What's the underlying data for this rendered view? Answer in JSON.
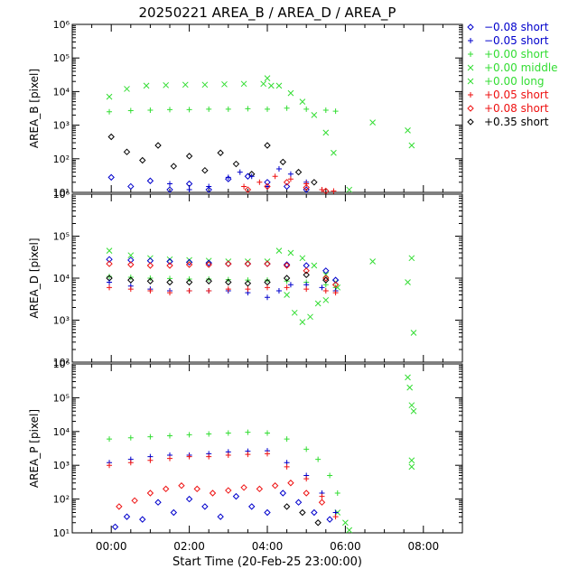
{
  "chart_data": {
    "type": "scatter",
    "title": "20250221 AREA_B / AREA_D / AREA_P",
    "xlabel": "Start Time (20-Feb-25 23:00:00)",
    "x_unit": "hours after 00:00",
    "xlim": [
      -1.0,
      9.0
    ],
    "x_ticks": [
      0,
      2,
      4,
      6,
      8
    ],
    "x_tick_labels": [
      "00:00",
      "02:00",
      "04:00",
      "06:00",
      "08:00"
    ],
    "legend_position": "right",
    "legend": [
      {
        "label": "−0.08 short",
        "symbol": "diamond",
        "color": "#0000cc"
      },
      {
        "label": "−0.05 short",
        "symbol": "plus",
        "color": "#0000cc"
      },
      {
        "label": "+0.00 short",
        "symbol": "plus",
        "color": "#33dd33"
      },
      {
        "label": "+0.00 middle",
        "symbol": "cross",
        "color": "#33dd33"
      },
      {
        "label": "+0.00 long",
        "symbol": "cross",
        "color": "#33dd33"
      },
      {
        "label": "+0.05 short",
        "symbol": "plus",
        "color": "#ee1111"
      },
      {
        "label": "+0.08 short",
        "symbol": "diamond",
        "color": "#ee1111"
      },
      {
        "label": "+0.35 short",
        "symbol": "diamond",
        "color": "#000000"
      }
    ],
    "panels": [
      {
        "ylabel": "AREA_B [pixel]",
        "ylim_log10": [
          1,
          6
        ],
        "y_tick_labels": [
          "10¹",
          "10²",
          "10³",
          "10⁴",
          "10⁵",
          "10⁶"
        ],
        "series": [
          {
            "name": "+0.00 long",
            "x": [
              -0.05,
              0.4,
              0.9,
              1.4,
              1.9,
              2.4,
              2.9,
              3.4,
              3.9,
              4.1
            ],
            "y": [
              7000,
              12000,
              15000,
              15500,
              16000,
              16000,
              16500,
              17000,
              17000,
              15000
            ]
          },
          {
            "name": "+0.00 short",
            "x": [
              -0.05,
              0.5,
              1.0,
              1.5,
              2.0,
              2.5,
              3.0,
              3.5,
              4.0,
              4.5,
              5.0,
              5.5,
              5.75
            ],
            "y": [
              2500,
              2700,
              2800,
              2900,
              2900,
              3000,
              3000,
              3100,
              3000,
              3200,
              3000,
              2800,
              2600
            ]
          },
          {
            "name": "+0.00 middle",
            "x": [
              4.0,
              4.3,
              4.6,
              4.9,
              5.2,
              5.5,
              5.7,
              6.1,
              6.7,
              7.6,
              7.7
            ],
            "y": [
              25000,
              15000,
              9000,
              5000,
              2000,
              600,
              150,
              12,
              1200,
              700,
              250
            ]
          },
          {
            "name": "+0.35 short",
            "x": [
              0.0,
              0.4,
              0.8,
              1.2,
              1.6,
              2.0,
              2.4,
              2.8,
              3.2,
              3.6,
              4.0,
              4.4,
              4.8,
              5.2
            ],
            "y": [
              450,
              160,
              90,
              250,
              60,
              120,
              45,
              150,
              70,
              35,
              250,
              80,
              40,
              20
            ]
          },
          {
            "name": "−0.08 short",
            "x": [
              0.0,
              0.5,
              1.0,
              1.5,
              2.0,
              2.5,
              3.0,
              3.5,
              4.0,
              4.5,
              5.0
            ],
            "y": [
              28,
              15,
              22,
              12,
              18,
              12,
              25,
              30,
              20,
              15,
              12
            ]
          },
          {
            "name": "−0.05 short",
            "x": [
              1.5,
              2.0,
              2.5,
              3.0,
              3.3,
              3.6,
              4.0,
              4.3,
              4.6,
              5.0,
              5.4
            ],
            "y": [
              18,
              12,
              15,
              28,
              40,
              30,
              15,
              50,
              35,
              20,
              12
            ]
          },
          {
            "name": "+0.05 short",
            "x": [
              3.4,
              3.8,
              4.2,
              4.6,
              5.0,
              5.4,
              5.7
            ],
            "y": [
              15,
              20,
              30,
              25,
              18,
              12,
              11
            ]
          },
          {
            "name": "+0.08 short",
            "x": [
              3.5,
              4.0,
              4.5,
              5.0,
              5.5
            ],
            "y": [
              12,
              15,
              20,
              14,
              11
            ]
          }
        ]
      },
      {
        "ylabel": "AREA_D [pixel]",
        "ylim_log10": [
          2,
          6
        ],
        "y_tick_labels": [
          "10²",
          "10³",
          "10⁴",
          "10⁵",
          "10⁶"
        ],
        "series": [
          {
            "name": "+0.00 long",
            "x": [
              -0.05,
              0.5,
              1.0,
              1.5,
              2.0,
              2.5,
              3.0,
              3.5,
              4.0,
              4.3,
              4.6,
              4.9,
              5.2,
              5.5,
              5.75
            ],
            "y": [
              45000,
              35000,
              30000,
              28000,
              27000,
              26000,
              25000,
              25000,
              25000,
              45000,
              40000,
              30000,
              20000,
              12000,
              8000
            ]
          },
          {
            "name": "+0.00 short",
            "x": [
              -0.05,
              0.5,
              1.0,
              1.5,
              2.0,
              2.5,
              3.0,
              3.5,
              4.0,
              4.5,
              5.0,
              5.5,
              5.75
            ],
            "y": [
              11000,
              10500,
              10000,
              9800,
              9500,
              9500,
              9200,
              9000,
              9000,
              8500,
              8000,
              7000,
              6000
            ]
          },
          {
            "name": "+0.00 middle",
            "x": [
              4.5,
              4.7,
              4.9,
              5.1,
              5.3,
              5.5,
              5.8,
              6.7,
              7.6,
              7.7,
              7.75
            ],
            "y": [
              4000,
              1500,
              900,
              1200,
              2500,
              3000,
              6000,
              25000,
              8000,
              30000,
              500
            ]
          },
          {
            "name": "−0.08 short",
            "x": [
              -0.05,
              0.5,
              1.0,
              1.5,
              2.0,
              2.5,
              3.0,
              3.5,
              4.0,
              4.5,
              5.0,
              5.5,
              5.75
            ],
            "y": [
              28000,
              27000,
              26000,
              25000,
              24000,
              23000,
              22000,
              22000,
              22000,
              21000,
              20000,
              15000,
              9000
            ]
          },
          {
            "name": "+0.08 short",
            "x": [
              -0.05,
              0.5,
              1.0,
              1.5,
              2.0,
              2.5,
              3.0,
              3.5,
              4.0,
              4.5,
              5.0,
              5.5,
              5.75
            ],
            "y": [
              22000,
              21000,
              20000,
              20000,
              21000,
              21000,
              22000,
              22000,
              22000,
              20000,
              15000,
              10000,
              7000
            ]
          },
          {
            "name": "+0.35 short",
            "x": [
              -0.05,
              0.5,
              1.0,
              1.5,
              2.0,
              2.5,
              3.0,
              3.5,
              4.0,
              4.5,
              5.0,
              5.5
            ],
            "y": [
              10000,
              9000,
              8500,
              8000,
              8000,
              8500,
              8000,
              7500,
              8000,
              10000,
              12000,
              9000
            ]
          },
          {
            "name": "−0.05 short",
            "x": [
              -0.05,
              0.5,
              1.0,
              1.5,
              2.0,
              2.5,
              3.0,
              3.5,
              4.0,
              4.3,
              4.6,
              5.0,
              5.4,
              5.75
            ],
            "y": [
              8000,
              6500,
              5500,
              5000,
              5000,
              5000,
              5000,
              4500,
              3500,
              5000,
              7000,
              7000,
              6000,
              5000
            ]
          },
          {
            "name": "+0.05 short",
            "x": [
              -0.05,
              0.5,
              1.0,
              1.5,
              2.0,
              2.5,
              3.0,
              3.5,
              4.0,
              4.5,
              5.0,
              5.5,
              5.75
            ],
            "y": [
              6000,
              5500,
              5000,
              4500,
              5000,
              5000,
              5500,
              5500,
              6000,
              6000,
              5500,
              5000,
              4500
            ]
          }
        ]
      },
      {
        "ylabel": "AREA_P [pixel]",
        "ylim_log10": [
          1,
          6
        ],
        "y_tick_labels": [
          "10¹",
          "10²",
          "10³",
          "10⁴",
          "10⁵",
          "10⁶"
        ],
        "series": [
          {
            "name": "+0.00 short",
            "x": [
              -0.05,
              0.5,
              1.0,
              1.5,
              2.0,
              2.5,
              3.0,
              3.5,
              4.0,
              4.5,
              5.0,
              5.3,
              5.6,
              5.8
            ],
            "y": [
              6000,
              6500,
              7000,
              7500,
              8000,
              8500,
              9000,
              9500,
              9000,
              6000,
              3000,
              1500,
              500,
              150
            ]
          },
          {
            "name": "+0.00 middle",
            "x": [
              5.8,
              6.0,
              6.1
            ],
            "y": [
              40,
              20,
              12
            ]
          },
          {
            "name": "+0.00 long",
            "x": [
              7.6,
              7.65,
              7.7,
              7.75,
              7.7,
              7.7
            ],
            "y": [
              400000,
              200000,
              60000,
              40000,
              1400,
              900
            ]
          },
          {
            "name": "−0.05 short",
            "x": [
              -0.05,
              0.5,
              1.0,
              1.5,
              2.0,
              2.5,
              3.0,
              3.5,
              4.0,
              4.5,
              5.0,
              5.4,
              5.75
            ],
            "y": [
              1200,
              1500,
              1800,
              2000,
              2000,
              2200,
              2500,
              2600,
              2700,
              1200,
              500,
              150,
              40
            ]
          },
          {
            "name": "+0.05 short",
            "x": [
              -0.05,
              0.5,
              1.0,
              1.5,
              2.0,
              2.5,
              3.0,
              3.5,
              4.0,
              4.5,
              5.0,
              5.4,
              5.75
            ],
            "y": [
              1000,
              1200,
              1400,
              1600,
              1800,
              1800,
              2000,
              2100,
              2200,
              900,
              400,
              120,
              30
            ]
          },
          {
            "name": "−0.08 short",
            "x": [
              0.1,
              0.4,
              0.8,
              1.2,
              1.6,
              2.0,
              2.4,
              2.8,
              3.2,
              3.6,
              4.0,
              4.4,
              4.8,
              5.2,
              5.6
            ],
            "y": [
              15,
              30,
              25,
              80,
              40,
              100,
              60,
              30,
              120,
              60,
              40,
              150,
              80,
              40,
              25
            ]
          },
          {
            "name": "+0.08 short",
            "x": [
              0.2,
              0.6,
              1.0,
              1.4,
              1.8,
              2.2,
              2.6,
              3.0,
              3.4,
              3.8,
              4.2,
              4.6,
              5.0,
              5.4
            ],
            "y": [
              60,
              90,
              150,
              200,
              250,
              200,
              150,
              180,
              220,
              200,
              250,
              300,
              150,
              80
            ]
          },
          {
            "name": "+0.35 short",
            "x": [
              4.5,
              4.9,
              5.3
            ],
            "y": [
              60,
              40,
              20
            ]
          }
        ]
      }
    ]
  }
}
